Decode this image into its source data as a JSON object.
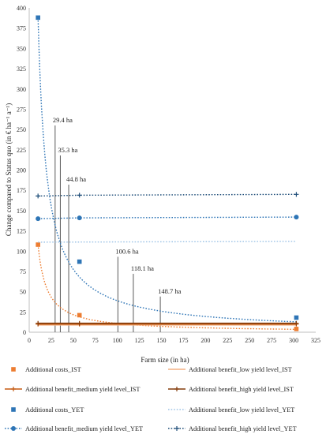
{
  "chart_data": {
    "type": "line",
    "xlabel": "Farm size (in ha)",
    "ylabel": "Change compared to Status quo (in € ha⁻¹ a⁻¹)",
    "xlim": [
      0,
      325
    ],
    "ylim": [
      0,
      400
    ],
    "xticks": [
      0,
      25,
      50,
      75,
      100,
      125,
      150,
      175,
      200,
      225,
      250,
      275,
      300,
      325
    ],
    "yticks": [
      0,
      25,
      50,
      75,
      100,
      125,
      150,
      175,
      200,
      225,
      250,
      275,
      300,
      325,
      350,
      375,
      400
    ],
    "grid": false,
    "legend_position": "bottom",
    "colors": {
      "ist_orange": "#ed7d31",
      "ist_dark": "#c55a11",
      "ist_brown": "#843c0c",
      "yet_blue": "#2e75b6",
      "yet_light": "#9dc3e6",
      "yet_navy": "#1f4e79"
    },
    "series": [
      {
        "name": "Additional costs_IST",
        "kind": "points",
        "marker": "square",
        "color": "#ed7d31",
        "x": [
          10,
          57,
          303
        ],
        "y": [
          108,
          21,
          4
        ]
      },
      {
        "name": "Additional benefit_low yield level_IST",
        "kind": "line",
        "marker": "none",
        "color": "#f4b183",
        "x": [
          10,
          303
        ],
        "y": [
          9,
          9
        ]
      },
      {
        "name": "Additional benefit_medium yield level_IST",
        "kind": "line",
        "marker": "plus",
        "color": "#c55a11",
        "x": [
          10,
          57,
          303
        ],
        "y": [
          10,
          10,
          10
        ]
      },
      {
        "name": "Additional benefit_high yield level_IST",
        "kind": "line",
        "marker": "plus",
        "color": "#843c0c",
        "x": [
          10,
          57,
          303
        ],
        "y": [
          11,
          11,
          11
        ]
      },
      {
        "name": "Additional costs_YET",
        "kind": "points",
        "marker": "square",
        "color": "#2e75b6",
        "x": [
          10,
          57,
          303
        ],
        "y": [
          388,
          87,
          18
        ]
      },
      {
        "name": "Additional benefit_low yield level_YET",
        "kind": "line",
        "marker": "none",
        "color": "#9dc3e6",
        "x": [
          10,
          303
        ],
        "y": [
          111,
          112
        ]
      },
      {
        "name": "Additional benefit_medium yield level_YET",
        "kind": "line",
        "marker": "circle",
        "color": "#2e75b6",
        "x": [
          10,
          57,
          303
        ],
        "y": [
          140,
          141,
          142
        ]
      },
      {
        "name": "Additional benefit_high yield level_YET",
        "kind": "line",
        "marker": "plus",
        "color": "#1f4e79",
        "x": [
          10,
          57,
          303
        ],
        "y": [
          168,
          169,
          170
        ]
      }
    ],
    "trendlines": [
      {
        "of": "Additional costs_IST",
        "color": "#ed7d31",
        "a": 1080,
        "x_from": 10,
        "x_to": 303
      },
      {
        "of": "Additional costs_YET",
        "color": "#2e75b6",
        "a": 3880,
        "x_from": 10,
        "x_to": 303
      }
    ],
    "annotations": [
      {
        "label": "29.4 ha",
        "x": 29.4,
        "y_top": 255
      },
      {
        "label": "35.3 ha",
        "x": 35.3,
        "y_top": 218
      },
      {
        "label": "44.8 ha",
        "x": 44.8,
        "y_top": 182
      },
      {
        "label": "100.6 ha",
        "x": 100.6,
        "y_top": 93
      },
      {
        "label": "118.1 ha",
        "x": 118.1,
        "y_top": 72
      },
      {
        "label": "148.7 ha",
        "x": 148.7,
        "y_top": 44
      }
    ]
  }
}
